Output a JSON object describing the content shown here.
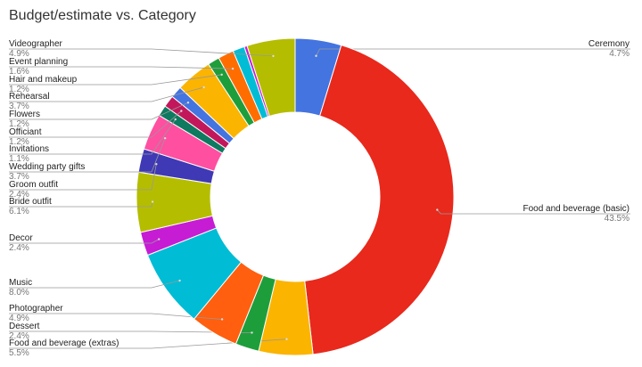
{
  "chart_data": {
    "type": "pie",
    "title": "Budget/estimate vs. Category",
    "categories": [
      "Ceremony",
      "Food and beverage (basic)",
      "Food and beverage (extras)",
      "Dessert",
      "Photographer",
      "Music",
      "Decor",
      "Bride outfit",
      "Groom outfit",
      "Wedding party gifts",
      "Invitations",
      "Officiant",
      "Flowers",
      "Rehearsal",
      "Hair and makeup",
      "Event planning",
      null,
      null,
      "Videographer"
    ],
    "values": [
      4.7,
      43.5,
      5.5,
      2.4,
      4.9,
      8.0,
      2.4,
      6.1,
      2.4,
      3.7,
      1.1,
      1.2,
      1.2,
      3.7,
      1.2,
      1.6,
      1.2,
      0.3,
      4.9
    ],
    "value_labels": [
      "4.7%",
      "43.5%",
      "5.5%",
      "2.4%",
      "4.9%",
      "8.0%",
      "2.4%",
      "6.1%",
      "2.4%",
      "3.7%",
      "1.1%",
      "1.2%",
      "1.2%",
      "3.7%",
      "1.2%",
      "1.6%",
      null,
      null,
      "4.9%"
    ],
    "colors": [
      "#4374e0",
      "#e8291c",
      "#fbb400",
      "#1e9e3b",
      "#ff5f0e",
      "#00bcd4",
      "#c61cd4",
      "#b5bd00",
      "#3f39b5",
      "#ff4fa0",
      "#0e7a5f",
      "#c2185b",
      "#4374e0",
      "#fbb400",
      "#1e9e3b",
      "#ff6d00",
      "#00bcd4",
      "#c61cd4",
      "#b5bd00"
    ]
  }
}
